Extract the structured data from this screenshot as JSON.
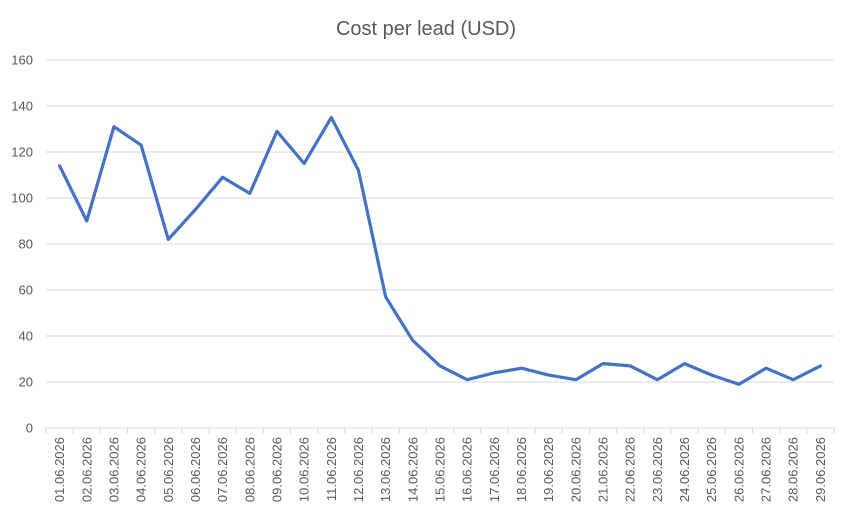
{
  "chart_data": {
    "type": "line",
    "title": "Cost per lead (USD)",
    "xlabel": "",
    "ylabel": "",
    "ylim": [
      0,
      160
    ],
    "yticks": [
      0,
      20,
      40,
      60,
      80,
      100,
      120,
      140,
      160
    ],
    "grid": "horizontal",
    "legend": "none",
    "categories": [
      "01.06.2026",
      "02.06.2026",
      "03.06.2026",
      "04.06.2026",
      "05.06.2026",
      "06.06.2026",
      "07.06.2026",
      "08.06.2026",
      "09.06.2026",
      "10.06.2026",
      "11.06.2026",
      "12.06.2026",
      "13.06.2026",
      "14.06.2026",
      "15.06.2026",
      "16.06.2026",
      "17.06.2026",
      "18.06.2026",
      "19.06.2026",
      "20.06.2026",
      "21.06.2026",
      "22.06.2026",
      "23.06.2026",
      "24.06.2026",
      "25.06.2026",
      "26.06.2026",
      "27.06.2026",
      "28.06.2026",
      "29.06.2026"
    ],
    "series": [
      {
        "color": "#4472C4",
        "values": [
          114,
          90,
          131,
          123,
          82,
          95,
          109,
          102,
          129,
          115,
          135,
          112,
          57,
          38,
          27,
          21,
          24,
          26,
          23,
          21,
          28,
          27,
          21,
          28,
          23,
          19,
          26,
          21,
          27
        ]
      }
    ]
  }
}
